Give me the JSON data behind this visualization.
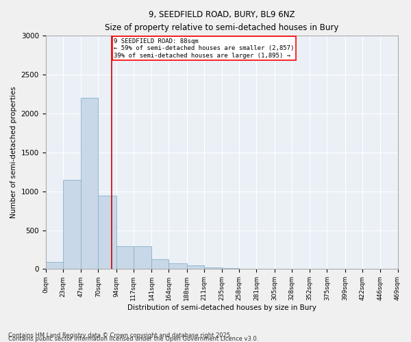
{
  "title_line1": "9, SEEDFIELD ROAD, BURY, BL9 6NZ",
  "title_line2": "Size of property relative to semi-detached houses in Bury",
  "xlabel": "Distribution of semi-detached houses by size in Bury",
  "ylabel": "Number of semi-detached properties",
  "bar_color": "#c8d8e8",
  "bar_edgecolor": "#8ab0c8",
  "annotation_title": "9 SEEDFIELD ROAD: 88sqm",
  "annotation_line2": "← 59% of semi-detached houses are smaller (2,857)",
  "annotation_line3": "39% of semi-detached houses are larger (1,895) →",
  "vline_x": 88,
  "vline_color": "#cc0000",
  "bin_edges": [
    0,
    23,
    47,
    70,
    94,
    117,
    141,
    164,
    188,
    211,
    235,
    258,
    281,
    305,
    328,
    352,
    375,
    399,
    422,
    446,
    469
  ],
  "bar_heights": [
    90,
    1150,
    2200,
    940,
    290,
    290,
    130,
    70,
    50,
    25,
    10,
    5,
    3,
    2,
    1,
    1,
    1,
    0,
    0,
    0
  ],
  "ylim": [
    0,
    3000
  ],
  "yticks": [
    0,
    500,
    1000,
    1500,
    2000,
    2500,
    3000
  ],
  "footnote_line1": "Contains HM Land Registry data © Crown copyright and database right 2025.",
  "footnote_line2": "Contains public sector information licensed under the Open Government Licence v3.0.",
  "bg_color": "#f0f0f0",
  "plot_bg_color": "#eaf0f6"
}
